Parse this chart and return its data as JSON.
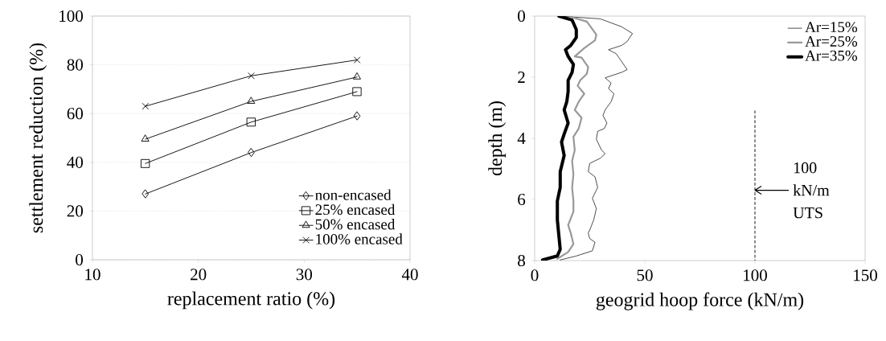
{
  "chart_data": [
    {
      "type": "line",
      "xlabel": "replacement ratio (%)",
      "ylabel": "settlement reduction (%)",
      "x": [
        15,
        25,
        35
      ],
      "xlim": [
        10,
        40
      ],
      "xticks": [
        10,
        20,
        30,
        40
      ],
      "ylim": [
        0,
        100
      ],
      "yticks": [
        0,
        20,
        40,
        60,
        80,
        100
      ],
      "grid": "y",
      "legend": "bottom right",
      "series": [
        {
          "name": "non-encased",
          "color": "#000000",
          "marker": "diamond",
          "values": [
            27,
            44,
            59
          ]
        },
        {
          "name": "25% encased",
          "color": "#000000",
          "marker": "square",
          "values": [
            39.5,
            56.5,
            69
          ]
        },
        {
          "name": "50% encased",
          "color": "#000000",
          "marker": "triangle",
          "values": [
            49.5,
            65,
            75
          ]
        },
        {
          "name": "100% encased",
          "color": "#000000",
          "marker": "cross",
          "values": [
            63,
            75.5,
            82
          ]
        }
      ]
    },
    {
      "type": "line",
      "xlabel": "geogrid hoop force (kN/m)",
      "ylabel": "depth (m)",
      "xlim": [
        0,
        150
      ],
      "xticks": [
        0,
        50,
        100,
        150
      ],
      "ylim": [
        8,
        0
      ],
      "yticks": [
        0,
        2,
        4,
        6,
        8
      ],
      "legend": "top right",
      "marker": "none",
      "annotations": [
        {
          "text": "100 kN/m UTS",
          "x": 100,
          "y": 5.7
        }
      ],
      "series": [
        {
          "name": "Ar=15%",
          "color": "#000000",
          "x": [
            11,
            29.8,
            39.5,
            44.4,
            42,
            39.5,
            33.5,
            37,
            39.5,
            42,
            39.5,
            32,
            34.7,
            33.5,
            36,
            34.7,
            32,
            31,
            32.8,
            31.6,
            28.6,
            28,
            30.4,
            32,
            29.8,
            25,
            24.3,
            27.4,
            28.6,
            26.2,
            28,
            26.8,
            25,
            24.3,
            25,
            27.4,
            26.2,
            18.9,
            11.6
          ],
          "values": [
            0,
            0.09,
            0.35,
            0.57,
            0.83,
            0.96,
            1.1,
            1.23,
            1.49,
            1.75,
            1.84,
            2.02,
            2.19,
            2.37,
            2.54,
            2.8,
            3.07,
            3.25,
            3.5,
            3.68,
            3.77,
            4.03,
            4.39,
            4.5,
            4.65,
            4.82,
            5.09,
            5.26,
            5.61,
            5.96,
            6.3,
            6.67,
            7.0,
            7.1,
            7.28,
            7.4,
            7.68,
            7.85,
            7.98
          ]
        },
        {
          "name": "Ar=25%",
          "color": "#999999",
          "x": [
            17,
            23.7,
            28,
            27.4,
            22.5,
            18.2,
            21.3,
            24.3,
            23.7,
            20.7,
            19.5,
            22.5,
            20,
            18.2,
            21.3,
            20,
            17.6,
            18.2,
            17,
            17.6,
            17,
            17.6,
            17.6,
            15.2,
            16.4,
            17.6,
            15.2,
            10.3
          ],
          "values": [
            0.04,
            0.18,
            0.61,
            0.79,
            1.05,
            1.32,
            1.36,
            1.67,
            1.89,
            2.1,
            2.28,
            2.54,
            2.8,
            3.07,
            3.33,
            3.68,
            3.95,
            4.39,
            4.74,
            5.18,
            5.61,
            6.05,
            6.4,
            6.84,
            7.1,
            7.46,
            7.72,
            7.94
          ]
        },
        {
          "name": "Ar=35%",
          "color": "#000000",
          "x": [
            11,
            17,
            18.9,
            18.9,
            16.4,
            14,
            15.2,
            17.6,
            17,
            15.2,
            15.2,
            14.6,
            13.4,
            15.2,
            13.4,
            12.2,
            13.4,
            11.6,
            11.6,
            10.3,
            10.3,
            11,
            11.6,
            10.3,
            3.6
          ],
          "values": [
            0,
            0.13,
            0.44,
            0.7,
            0.96,
            1.1,
            1.32,
            1.58,
            1.84,
            2.1,
            2.46,
            2.8,
            3.07,
            3.5,
            3.86,
            4.12,
            4.56,
            5.09,
            5.61,
            6.05,
            6.67,
            7.19,
            7.63,
            7.85,
            7.98
          ]
        },
        {
          "color": "#000000",
          "line_style": "dashed",
          "x": [
            100,
            100
          ],
          "values": [
            3.1,
            8
          ]
        }
      ]
    }
  ]
}
